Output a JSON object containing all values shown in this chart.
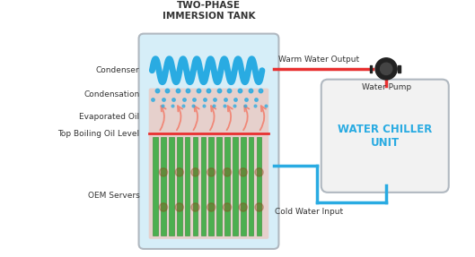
{
  "title": "TWO-PHASE\nIMMERSION TANK",
  "tank_color": "#d6eef8",
  "tank_border": "#b0b8c0",
  "condenser_coil_color": "#29abe2",
  "server_green": "#4caf50",
  "server_dark_green": "#2e8b2e",
  "boil_level_color": "#e83030",
  "oil_pink": "#f5b8a8",
  "drop_color": "#29abe2",
  "vapor_color": "#f08878",
  "chiller_box_color": "#f2f2f2",
  "chiller_border": "#b0b8c0",
  "chiller_text_color": "#29abe2",
  "pipe_red": "#e83030",
  "pipe_blue": "#29abe2",
  "pump_color": "#222222",
  "label_color": "#333333",
  "warm_label": "Warm Water Output",
  "cold_label": "Cold Water Input",
  "pump_label": "Water Pump",
  "chiller_label": "WATER CHILLER\nUNIT",
  "label_condenser": "Condenser",
  "label_condensation": "Condensation",
  "label_evaporated": "Evaporated Oil",
  "label_boiling": "Top Boiling Oil Level",
  "label_servers": "OEM Servers"
}
